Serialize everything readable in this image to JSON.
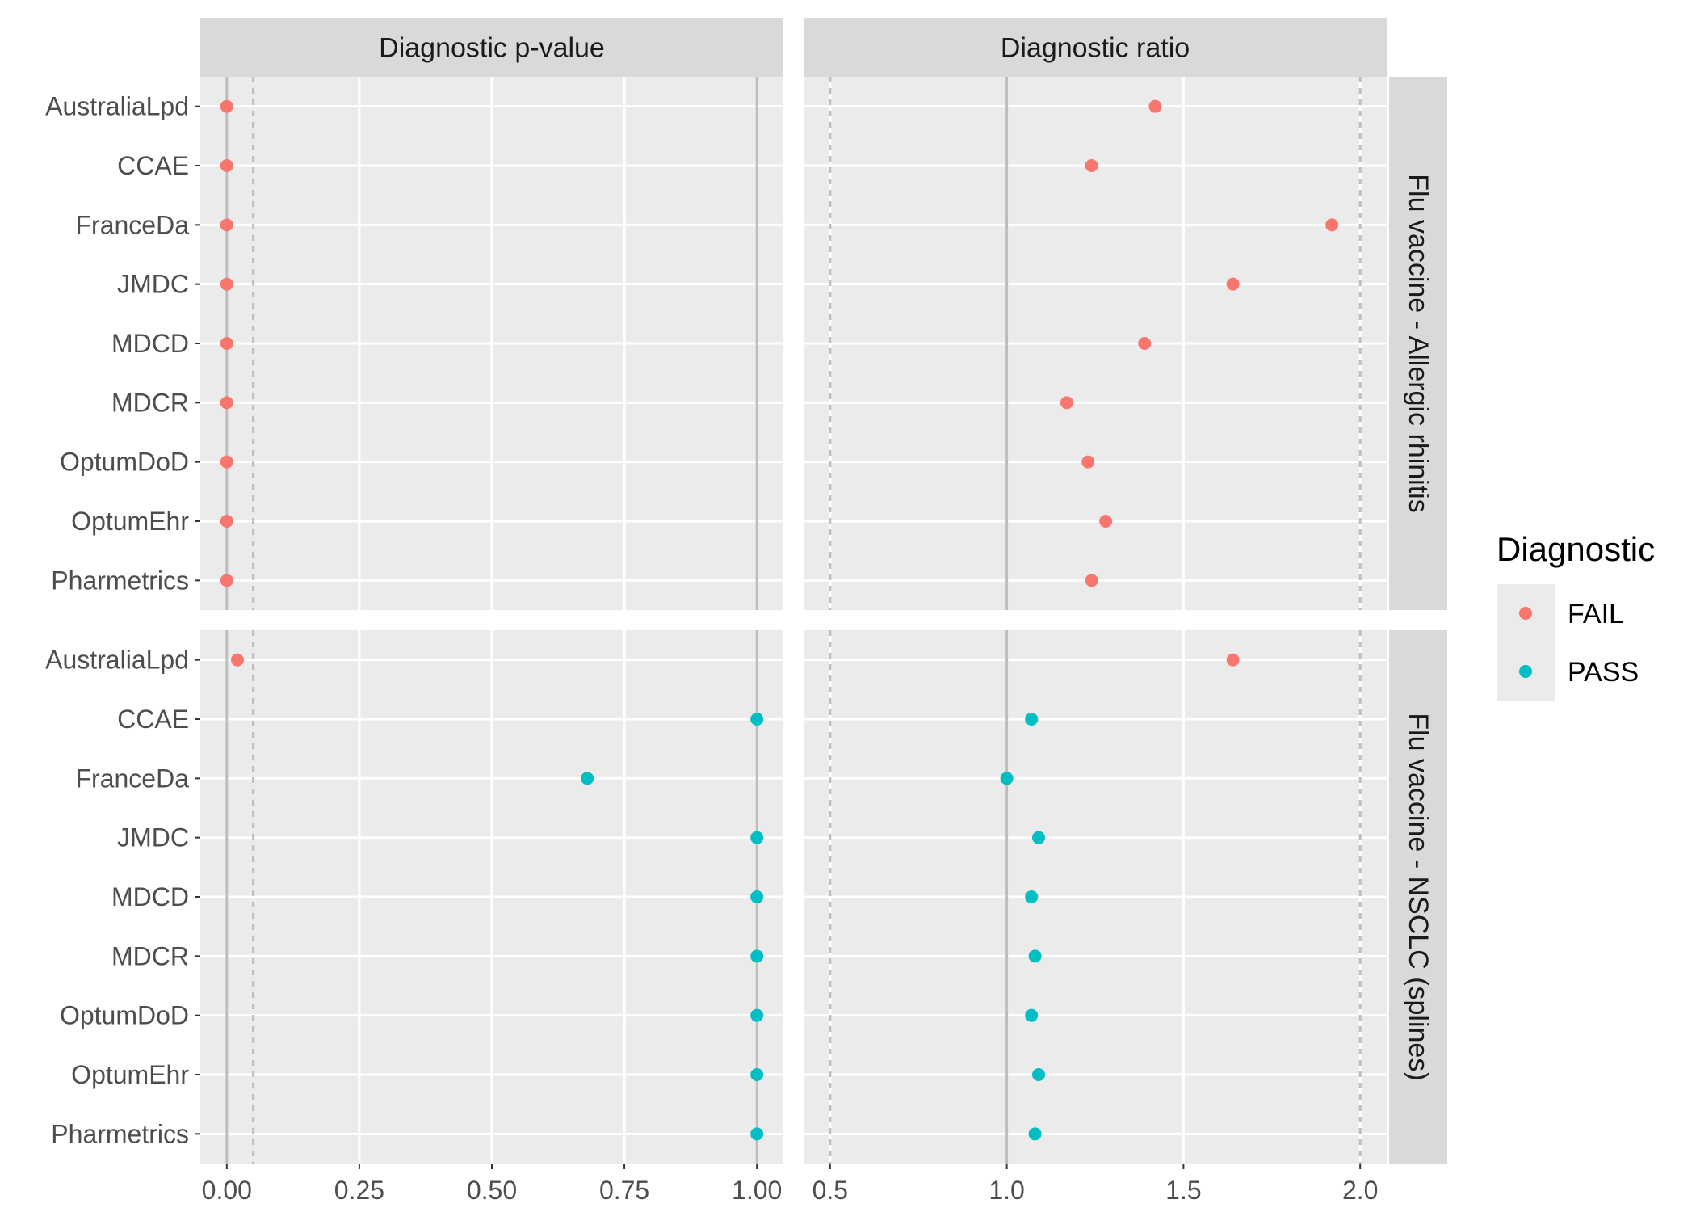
{
  "chart_data": {
    "type": "scatter",
    "facet_columns": [
      "Diagnostic p-value",
      "Diagnostic ratio"
    ],
    "facet_rows": [
      "Flu vaccine - Allergic rhinitis",
      "Flu vaccine - NSCLC (splines)"
    ],
    "databases": [
      "AustraliaLpd",
      "CCAE",
      "FranceDa",
      "JMDC",
      "MDCD",
      "MDCR",
      "OptumDoD",
      "OptumEhr",
      "Pharmetrics"
    ],
    "x_axes": [
      {
        "ticks": [
          "0.00",
          "0.25",
          "0.50",
          "0.75",
          "1.00"
        ],
        "range": [
          -0.05,
          1.05
        ],
        "ref_solid": [
          0,
          1
        ],
        "ref_dashed": [
          0.05
        ]
      },
      {
        "ticks": [
          "0.5",
          "1.0",
          "1.5",
          "2.0"
        ],
        "range": [
          0.425,
          2.075
        ],
        "ref_solid": [
          1.0
        ],
        "ref_dashed": [
          0.5,
          2.0
        ]
      }
    ],
    "legend": {
      "title": "Diagnostic",
      "position": "right",
      "entries": [
        {
          "label": "FAIL",
          "color": "#F8766D"
        },
        {
          "label": "PASS",
          "color": "#00BFC4"
        }
      ]
    },
    "panels": [
      {
        "row": 0,
        "col": 0,
        "values": [
          0.0,
          0.0,
          0.0,
          0.0,
          0.0,
          0.0,
          0.0,
          0.0,
          0.0
        ],
        "status": [
          "FAIL",
          "FAIL",
          "FAIL",
          "FAIL",
          "FAIL",
          "FAIL",
          "FAIL",
          "FAIL",
          "FAIL"
        ]
      },
      {
        "row": 0,
        "col": 1,
        "values": [
          1.42,
          1.24,
          1.92,
          1.64,
          1.39,
          1.17,
          1.23,
          1.28,
          1.24
        ],
        "status": [
          "FAIL",
          "FAIL",
          "FAIL",
          "FAIL",
          "FAIL",
          "FAIL",
          "FAIL",
          "FAIL",
          "FAIL"
        ]
      },
      {
        "row": 1,
        "col": 0,
        "values": [
          0.02,
          1.0,
          0.68,
          1.0,
          1.0,
          1.0,
          1.0,
          1.0,
          1.0
        ],
        "status": [
          "FAIL",
          "PASS",
          "PASS",
          "PASS",
          "PASS",
          "PASS",
          "PASS",
          "PASS",
          "PASS"
        ]
      },
      {
        "row": 1,
        "col": 1,
        "values": [
          1.64,
          1.07,
          1.0,
          1.09,
          1.07,
          1.08,
          1.07,
          1.09,
          1.08
        ],
        "status": [
          "FAIL",
          "PASS",
          "PASS",
          "PASS",
          "PASS",
          "PASS",
          "PASS",
          "PASS",
          "PASS"
        ]
      }
    ]
  }
}
